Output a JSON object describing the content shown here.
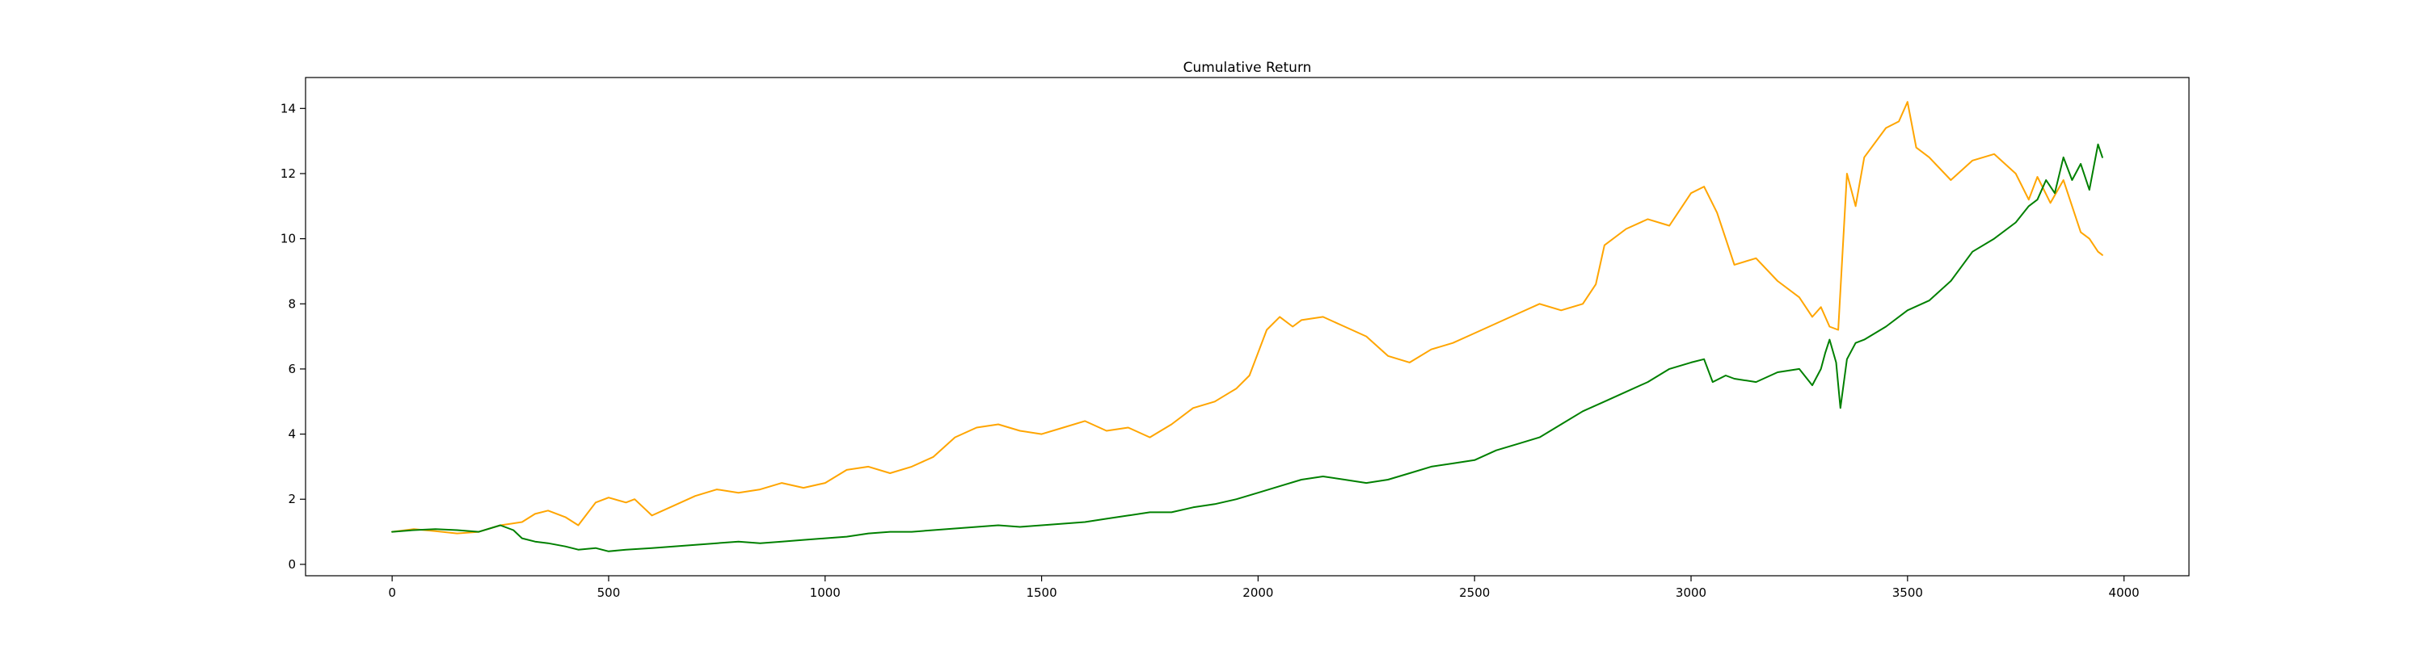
{
  "chart_data": {
    "type": "line",
    "title": "Cumulative Return",
    "xlabel": "",
    "ylabel": "",
    "xlim": [
      -200,
      4150
    ],
    "ylim": [
      -0.35,
      14.95
    ],
    "xticks": [
      0,
      500,
      1000,
      1500,
      2000,
      2500,
      3000,
      3500,
      4000
    ],
    "yticks": [
      0,
      2,
      4,
      6,
      8,
      10,
      12,
      14
    ],
    "grid": false,
    "legend": "none",
    "series": [
      {
        "color": "#ffa500",
        "x": [
          0,
          50,
          100,
          150,
          200,
          250,
          300,
          330,
          360,
          400,
          430,
          470,
          500,
          540,
          560,
          600,
          650,
          700,
          750,
          800,
          850,
          900,
          950,
          1000,
          1050,
          1100,
          1150,
          1200,
          1250,
          1300,
          1350,
          1400,
          1450,
          1500,
          1550,
          1600,
          1650,
          1700,
          1750,
          1800,
          1850,
          1900,
          1950,
          1980,
          2000,
          2020,
          2050,
          2080,
          2100,
          2150,
          2200,
          2250,
          2300,
          2350,
          2400,
          2450,
          2500,
          2550,
          2600,
          2650,
          2700,
          2750,
          2780,
          2800,
          2850,
          2900,
          2950,
          3000,
          3030,
          3060,
          3080,
          3100,
          3150,
          3200,
          3250,
          3280,
          3300,
          3320,
          3340,
          3360,
          3380,
          3400,
          3450,
          3480,
          3500,
          3520,
          3550,
          3600,
          3650,
          3700,
          3750,
          3780,
          3800,
          3830,
          3860,
          3880,
          3900,
          3920,
          3940,
          3950
        ],
        "y": [
          1.0,
          1.08,
          1.02,
          0.95,
          1.0,
          1.2,
          1.3,
          1.55,
          1.65,
          1.45,
          1.2,
          1.9,
          2.05,
          1.9,
          2.0,
          1.5,
          1.8,
          2.1,
          2.3,
          2.2,
          2.3,
          2.5,
          2.35,
          2.5,
          2.9,
          3.0,
          2.8,
          3.0,
          3.3,
          3.9,
          4.2,
          4.3,
          4.1,
          4.0,
          4.2,
          4.4,
          4.1,
          4.2,
          3.9,
          4.3,
          4.8,
          5.0,
          5.4,
          5.8,
          6.5,
          7.2,
          7.6,
          7.3,
          7.5,
          7.6,
          7.3,
          7.0,
          6.4,
          6.2,
          6.6,
          6.8,
          7.1,
          7.4,
          7.7,
          8.0,
          7.8,
          8.0,
          8.6,
          9.8,
          10.3,
          10.6,
          10.4,
          11.4,
          11.6,
          10.8,
          10.0,
          9.2,
          9.4,
          8.7,
          8.2,
          7.6,
          7.9,
          7.3,
          7.2,
          12.0,
          11.0,
          12.5,
          13.4,
          13.6,
          14.2,
          12.8,
          12.5,
          11.8,
          12.4,
          12.6,
          12.0,
          11.2,
          11.9,
          11.1,
          11.8,
          11.0,
          10.2,
          10.0,
          9.6,
          9.5
        ]
      },
      {
        "color": "#008000",
        "x": [
          0,
          50,
          100,
          150,
          200,
          250,
          280,
          300,
          330,
          360,
          400,
          430,
          470,
          500,
          540,
          600,
          650,
          700,
          750,
          800,
          850,
          900,
          950,
          1000,
          1050,
          1100,
          1150,
          1200,
          1250,
          1300,
          1350,
          1400,
          1450,
          1500,
          1550,
          1600,
          1650,
          1700,
          1750,
          1800,
          1850,
          1900,
          1950,
          2000,
          2050,
          2100,
          2150,
          2200,
          2250,
          2300,
          2350,
          2400,
          2450,
          2500,
          2550,
          2600,
          2650,
          2700,
          2750,
          2800,
          2850,
          2900,
          2950,
          3000,
          3030,
          3050,
          3080,
          3100,
          3150,
          3200,
          3250,
          3280,
          3300,
          3310,
          3320,
          3335,
          3345,
          3360,
          3380,
          3400,
          3450,
          3500,
          3550,
          3600,
          3650,
          3700,
          3750,
          3780,
          3800,
          3820,
          3840,
          3860,
          3880,
          3900,
          3920,
          3940,
          3950
        ],
        "y": [
          1.0,
          1.05,
          1.08,
          1.05,
          1.0,
          1.2,
          1.05,
          0.8,
          0.7,
          0.65,
          0.55,
          0.45,
          0.5,
          0.4,
          0.45,
          0.5,
          0.55,
          0.6,
          0.65,
          0.7,
          0.65,
          0.7,
          0.75,
          0.8,
          0.85,
          0.95,
          1.0,
          1.0,
          1.05,
          1.1,
          1.15,
          1.2,
          1.15,
          1.2,
          1.25,
          1.3,
          1.4,
          1.5,
          1.6,
          1.6,
          1.75,
          1.85,
          2.0,
          2.2,
          2.4,
          2.6,
          2.7,
          2.6,
          2.5,
          2.6,
          2.8,
          3.0,
          3.1,
          3.2,
          3.5,
          3.7,
          3.9,
          4.3,
          4.7,
          5.0,
          5.3,
          5.6,
          6.0,
          6.2,
          6.3,
          5.6,
          5.8,
          5.7,
          5.6,
          5.9,
          6.0,
          5.5,
          6.0,
          6.5,
          6.9,
          6.2,
          4.8,
          6.3,
          6.8,
          6.9,
          7.3,
          7.8,
          8.1,
          8.7,
          9.6,
          10.0,
          10.5,
          11.0,
          11.2,
          11.8,
          11.4,
          12.5,
          11.8,
          12.3,
          11.5,
          12.9,
          12.5
        ]
      }
    ]
  }
}
